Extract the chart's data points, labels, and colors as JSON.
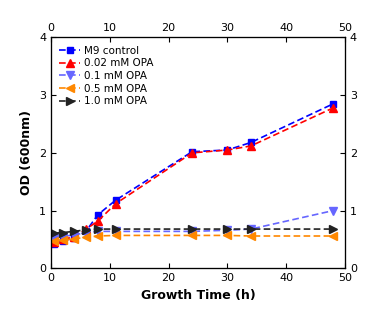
{
  "xlabel": "Growth Time (h)",
  "ylabel": "OD (600nm)",
  "xlim": [
    0,
    50
  ],
  "ylim": [
    0,
    4
  ],
  "xticks": [
    0,
    10,
    20,
    30,
    40,
    50
  ],
  "yticks": [
    0,
    1,
    2,
    3,
    4
  ],
  "series": [
    {
      "label": "M9 control",
      "color": "#0000ff",
      "marker": "s",
      "markersize": 5,
      "x": [
        0.5,
        2,
        4,
        6,
        8,
        11,
        24,
        30,
        34,
        48
      ],
      "y": [
        0.42,
        0.48,
        0.52,
        0.65,
        0.93,
        1.18,
        2.02,
        2.05,
        2.18,
        2.85
      ]
    },
    {
      "label": "0.02 mM OPA",
      "color": "#ff0000",
      "marker": "^",
      "markersize": 6,
      "x": [
        0.5,
        2,
        4,
        6,
        8,
        11,
        24,
        30,
        34,
        48
      ],
      "y": [
        0.45,
        0.5,
        0.55,
        0.68,
        0.82,
        1.12,
        2.0,
        2.05,
        2.12,
        2.78
      ]
    },
    {
      "label": "0.1 mM OPA",
      "color": "#6666ff",
      "marker": "v",
      "markersize": 6,
      "x": [
        0.5,
        2,
        4,
        6,
        8,
        11,
        24,
        30,
        34,
        48
      ],
      "y": [
        0.53,
        0.55,
        0.58,
        0.62,
        0.64,
        0.64,
        0.64,
        0.66,
        0.68,
        1.0
      ]
    },
    {
      "label": "0.5 mM OPA",
      "color": "#ff8800",
      "marker": "<",
      "markersize": 6,
      "x": [
        0.5,
        2,
        4,
        6,
        8,
        11,
        24,
        30,
        34,
        48
      ],
      "y": [
        0.47,
        0.49,
        0.51,
        0.54,
        0.56,
        0.57,
        0.57,
        0.57,
        0.56,
        0.56
      ]
    },
    {
      "label": "1.0 mM OPA",
      "color": "#222222",
      "marker": ">",
      "markersize": 6,
      "x": [
        0.5,
        2,
        4,
        6,
        8,
        11,
        24,
        30,
        34,
        48
      ],
      "y": [
        0.61,
        0.62,
        0.64,
        0.67,
        0.68,
        0.68,
        0.68,
        0.68,
        0.68,
        0.68
      ]
    }
  ],
  "background_color": "#ffffff",
  "tick_fontsize": 8,
  "label_fontsize": 9,
  "legend_fontsize": 7.5
}
